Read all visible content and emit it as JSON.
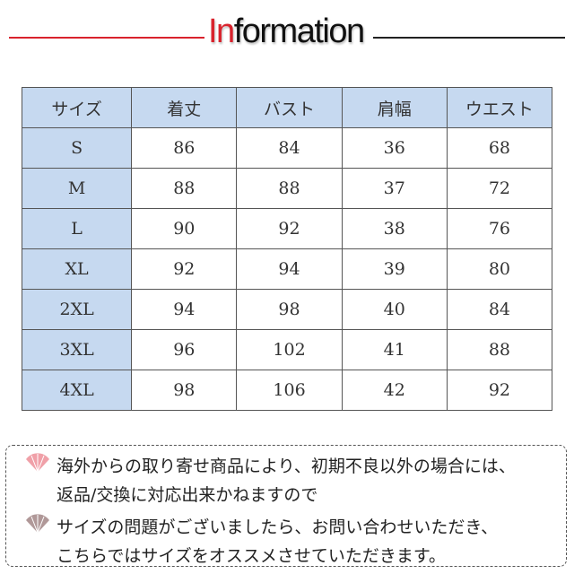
{
  "title": {
    "accent": "In",
    "rest": "formation"
  },
  "table": {
    "headers": [
      "サイズ",
      "着丈",
      "バスト",
      "肩幅",
      "ウエスト"
    ],
    "rows": [
      [
        "S",
        "86",
        "84",
        "36",
        "68"
      ],
      [
        "M",
        "88",
        "88",
        "37",
        "72"
      ],
      [
        "L",
        "90",
        "92",
        "38",
        "76"
      ],
      [
        "XL",
        "92",
        "94",
        "39",
        "80"
      ],
      [
        "2XL",
        "94",
        "98",
        "40",
        "84"
      ],
      [
        "3XL",
        "96",
        "102",
        "41",
        "88"
      ],
      [
        "4XL",
        "98",
        "106",
        "42",
        "92"
      ]
    ]
  },
  "notes": {
    "lines": [
      "海外からの取り寄せ商品により、初期不良以外の場合には、",
      "返品/交換に対応出来かねますので",
      "サイズの問題がございましたら、お問い合わせいただき、",
      "こちらではサイズをオススメさせていただきます。"
    ],
    "icons": [
      "fan-icon",
      "fan-icon"
    ],
    "colors": {
      "fan1": "#f0a0a8",
      "fan2": "#b09898",
      "accent": "#d9232d",
      "header_bg": "#c6d9f0"
    }
  }
}
